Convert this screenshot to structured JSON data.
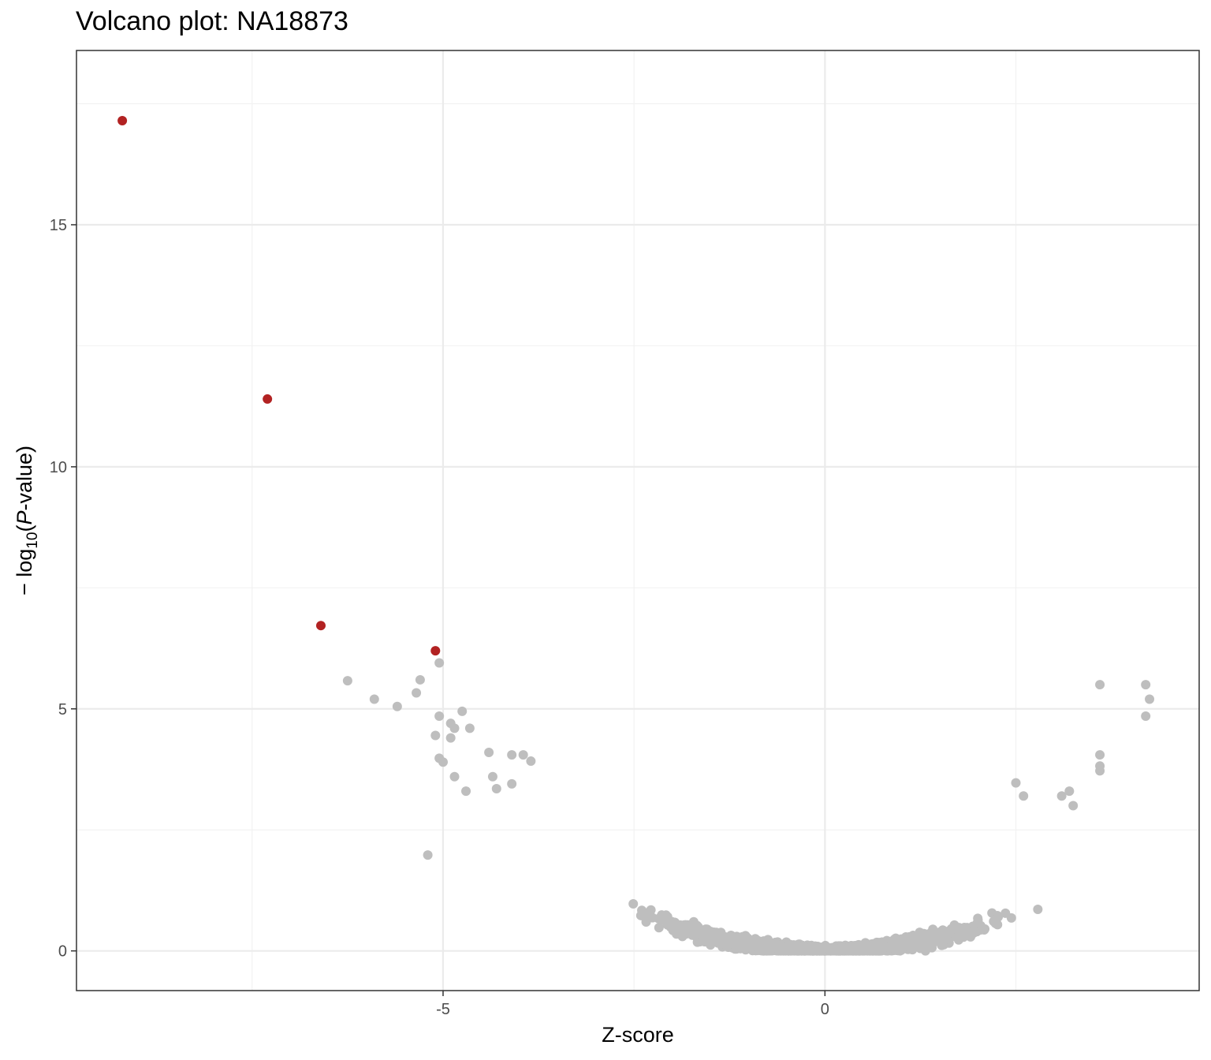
{
  "chart_data": {
    "type": "scatter",
    "title": "Volcano plot: NA18873",
    "xlabel": "Z-score",
    "ylabel_parts": [
      "− log",
      "10",
      "(",
      "P",
      "-value)"
    ],
    "xlim": [
      -9.8,
      4.9
    ],
    "ylim": [
      -0.82,
      18.6
    ],
    "xticks": [
      -5,
      0
    ],
    "yticks": [
      0,
      5,
      10,
      15
    ],
    "grid": true,
    "colors": {
      "significant": "#b22222",
      "not_significant": "#bebebe",
      "panel_border": "#333333",
      "grid_major": "#ebebeb",
      "grid_minor": "#f2f2f2"
    },
    "significant_points": [
      {
        "x": -9.2,
        "y": 17.15
      },
      {
        "x": -7.3,
        "y": 11.4
      },
      {
        "x": -6.6,
        "y": 6.72
      },
      {
        "x": -5.1,
        "y": 6.2
      }
    ],
    "outlier_points": [
      {
        "x": -5.05,
        "y": 5.95
      },
      {
        "x": -6.25,
        "y": 5.58
      },
      {
        "x": -5.9,
        "y": 5.2
      },
      {
        "x": -5.3,
        "y": 5.6
      },
      {
        "x": -5.35,
        "y": 5.33
      },
      {
        "x": -5.6,
        "y": 5.05
      },
      {
        "x": -4.75,
        "y": 4.95
      },
      {
        "x": -5.05,
        "y": 4.85
      },
      {
        "x": -4.9,
        "y": 4.7
      },
      {
        "x": -4.85,
        "y": 4.6
      },
      {
        "x": -4.65,
        "y": 4.6
      },
      {
        "x": -5.1,
        "y": 4.45
      },
      {
        "x": -4.9,
        "y": 4.4
      },
      {
        "x": -5.05,
        "y": 3.98
      },
      {
        "x": -4.85,
        "y": 3.6
      },
      {
        "x": -4.7,
        "y": 3.3
      },
      {
        "x": -5.2,
        "y": 1.98
      },
      {
        "x": -4.4,
        "y": 4.1
      },
      {
        "x": -4.1,
        "y": 4.05
      },
      {
        "x": -3.95,
        "y": 4.05
      },
      {
        "x": -3.85,
        "y": 3.92
      },
      {
        "x": -4.35,
        "y": 3.6
      },
      {
        "x": -4.3,
        "y": 3.35
      },
      {
        "x": -4.1,
        "y": 3.45
      },
      {
        "x": 3.6,
        "y": 5.5
      },
      {
        "x": 4.2,
        "y": 5.5
      },
      {
        "x": 4.25,
        "y": 5.2
      },
      {
        "x": 4.2,
        "y": 4.85
      },
      {
        "x": 3.6,
        "y": 4.05
      },
      {
        "x": 3.6,
        "y": 3.82
      },
      {
        "x": 3.6,
        "y": 3.72
      },
      {
        "x": 2.5,
        "y": 3.47
      },
      {
        "x": 3.2,
        "y": 3.3
      },
      {
        "x": 3.1,
        "y": 3.2
      },
      {
        "x": 2.6,
        "y": 3.2
      },
      {
        "x": 3.25,
        "y": 3.0
      },
      {
        "x": -5.0,
        "y": 3.9
      }
    ],
    "bulk_cloud": {
      "description_for_rendering": "dense cloud of non-significant points following y ≈ x^2/7.5",
      "x_range": [
        -4.2,
        3.25
      ],
      "count": 2600
    }
  }
}
